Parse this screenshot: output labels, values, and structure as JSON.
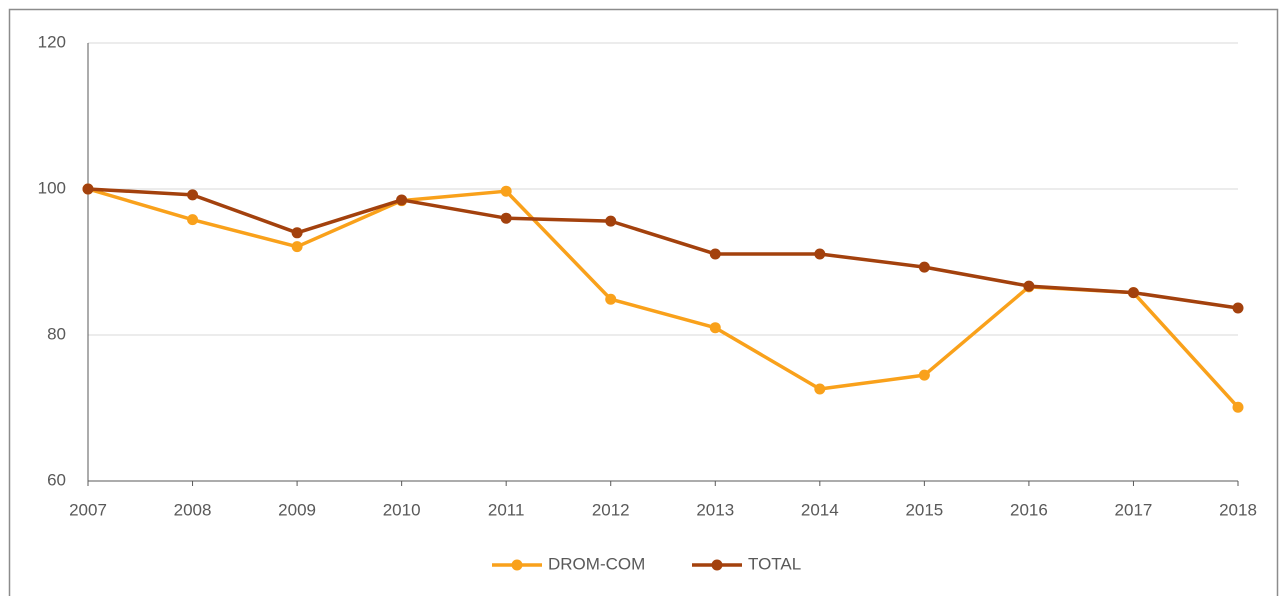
{
  "chart_data": {
    "type": "line",
    "x": [
      2007,
      2008,
      2009,
      2010,
      2011,
      2012,
      2013,
      2014,
      2015,
      2016,
      2017,
      2018
    ],
    "series": [
      {
        "name": "DROM-COM",
        "color": "#f9a11b",
        "values": [
          100,
          95.8,
          92.1,
          98.4,
          99.7,
          84.9,
          81.0,
          72.6,
          74.5,
          86.6,
          85.8,
          70.1
        ]
      },
      {
        "name": "TOTAL",
        "color": "#a3410d",
        "values": [
          100,
          99.2,
          94.0,
          98.5,
          96.0,
          95.6,
          91.1,
          91.1,
          89.3,
          86.7,
          85.8,
          83.7
        ]
      }
    ],
    "xlim": [
      2007,
      2018
    ],
    "xticks": [
      2007,
      2008,
      2009,
      2010,
      2011,
      2012,
      2013,
      2014,
      2015,
      2016,
      2017,
      2018
    ],
    "ylim": [
      60,
      120
    ],
    "yticks": [
      60,
      80,
      100,
      120
    ],
    "grid": true,
    "legend": "bottom"
  }
}
